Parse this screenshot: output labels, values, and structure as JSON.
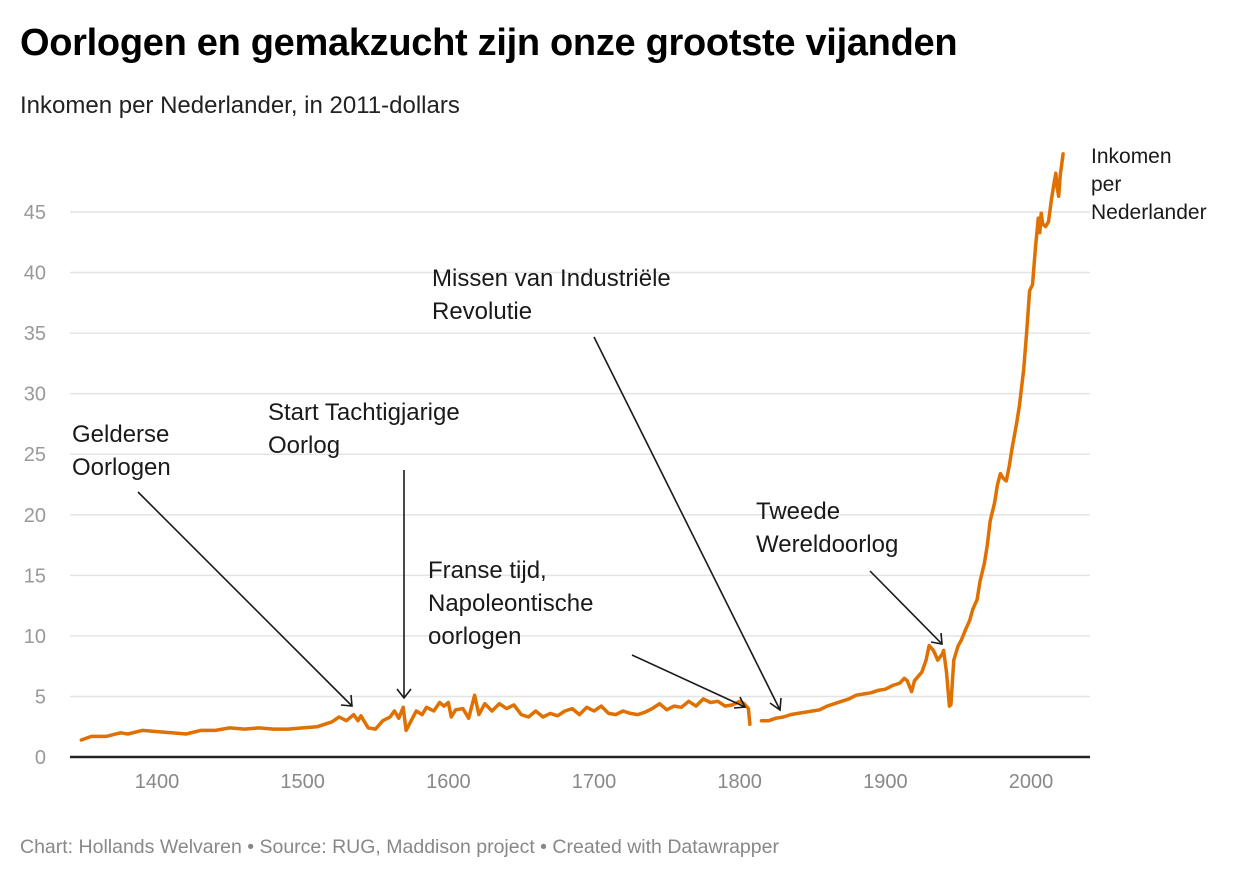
{
  "title": "Oorlogen en gemakzucht zijn onze grootste vijanden",
  "subtitle": "Inkomen per Nederlander, in 2011-dollars",
  "footer": "Chart: Hollands Welvaren • Source: RUG, Maddison project • Created with Datawrapper",
  "colors": {
    "line": "#e07000",
    "grid": "#e4e4e4",
    "axis": "#222222"
  },
  "chart_data": {
    "type": "line",
    "title": "Oorlogen en gemakzucht zijn onze grootste vijanden",
    "subtitle": "Inkomen per Nederlander, in 2011-dollars",
    "xlabel": "",
    "ylabel": "",
    "xlim": [
      1340,
      2030
    ],
    "ylim": [
      0,
      50
    ],
    "grid": true,
    "yticks": [
      0,
      5,
      10,
      15,
      20,
      25,
      30,
      35,
      40,
      45
    ],
    "xticks": [
      1400,
      1500,
      1600,
      1700,
      1800,
      1900,
      2000
    ],
    "series": [
      {
        "name": "Inkomen per Nederlander",
        "label_lines": [
          "Inkomen",
          "per",
          "Nederlander"
        ],
        "segments": [
          [
            [
              1348,
              1.4
            ],
            [
              1355,
              1.7
            ],
            [
              1365,
              1.7
            ],
            [
              1375,
              2.0
            ],
            [
              1380,
              1.9
            ],
            [
              1390,
              2.2
            ],
            [
              1400,
              2.1
            ],
            [
              1410,
              2.0
            ],
            [
              1420,
              1.9
            ],
            [
              1430,
              2.2
            ],
            [
              1440,
              2.2
            ],
            [
              1450,
              2.4
            ],
            [
              1460,
              2.3
            ],
            [
              1470,
              2.4
            ],
            [
              1480,
              2.3
            ],
            [
              1490,
              2.3
            ],
            [
              1500,
              2.4
            ],
            [
              1510,
              2.5
            ],
            [
              1515,
              2.7
            ],
            [
              1520,
              2.9
            ],
            [
              1525,
              3.3
            ],
            [
              1530,
              3.0
            ],
            [
              1535,
              3.5
            ],
            [
              1538,
              3.0
            ],
            [
              1540,
              3.4
            ],
            [
              1545,
              2.4
            ],
            [
              1550,
              2.3
            ],
            [
              1555,
              3.0
            ],
            [
              1560,
              3.3
            ],
            [
              1563,
              3.8
            ],
            [
              1566,
              3.2
            ],
            [
              1569,
              4.1
            ],
            [
              1571,
              2.2
            ],
            [
              1574,
              2.9
            ],
            [
              1578,
              3.8
            ],
            [
              1582,
              3.5
            ],
            [
              1585,
              4.1
            ],
            [
              1590,
              3.8
            ],
            [
              1594,
              4.5
            ],
            [
              1597,
              4.2
            ],
            [
              1600,
              4.5
            ],
            [
              1602,
              3.3
            ],
            [
              1605,
              3.9
            ],
            [
              1610,
              4.0
            ],
            [
              1614,
              3.2
            ],
            [
              1618,
              5.1
            ],
            [
              1621,
              3.5
            ],
            [
              1625,
              4.4
            ],
            [
              1630,
              3.8
            ],
            [
              1635,
              4.4
            ],
            [
              1640,
              4.0
            ],
            [
              1645,
              4.3
            ],
            [
              1650,
              3.5
            ],
            [
              1655,
              3.3
            ],
            [
              1660,
              3.8
            ],
            [
              1665,
              3.3
            ],
            [
              1670,
              3.6
            ],
            [
              1675,
              3.4
            ],
            [
              1680,
              3.8
            ],
            [
              1685,
              4.0
            ],
            [
              1690,
              3.5
            ],
            [
              1695,
              4.1
            ],
            [
              1700,
              3.8
            ],
            [
              1705,
              4.2
            ],
            [
              1710,
              3.6
            ],
            [
              1715,
              3.5
            ],
            [
              1720,
              3.8
            ],
            [
              1725,
              3.6
            ],
            [
              1730,
              3.5
            ],
            [
              1735,
              3.7
            ],
            [
              1740,
              4.0
            ],
            [
              1745,
              4.4
            ],
            [
              1750,
              3.9
            ],
            [
              1755,
              4.2
            ],
            [
              1760,
              4.1
            ],
            [
              1765,
              4.6
            ],
            [
              1770,
              4.2
            ],
            [
              1775,
              4.8
            ],
            [
              1780,
              4.5
            ],
            [
              1785,
              4.6
            ],
            [
              1790,
              4.2
            ],
            [
              1795,
              4.3
            ],
            [
              1800,
              4.6
            ],
            [
              1803,
              4.4
            ],
            [
              1806,
              4.0
            ],
            [
              1807,
              2.7
            ]
          ],
          [
            [
              1815,
              3.0
            ],
            [
              1820,
              3.0
            ],
            [
              1825,
              3.2
            ],
            [
              1830,
              3.3
            ],
            [
              1835,
              3.5
            ],
            [
              1840,
              3.6
            ],
            [
              1845,
              3.7
            ],
            [
              1850,
              3.8
            ],
            [
              1855,
              3.9
            ],
            [
              1860,
              4.2
            ],
            [
              1865,
              4.4
            ],
            [
              1870,
              4.6
            ],
            [
              1875,
              4.8
            ],
            [
              1880,
              5.1
            ],
            [
              1885,
              5.2
            ],
            [
              1890,
              5.3
            ],
            [
              1895,
              5.5
            ],
            [
              1900,
              5.6
            ],
            [
              1905,
              5.9
            ],
            [
              1910,
              6.1
            ],
            [
              1913,
              6.5
            ],
            [
              1915,
              6.3
            ],
            [
              1918,
              5.4
            ],
            [
              1920,
              6.3
            ],
            [
              1925,
              7.0
            ],
            [
              1928,
              8.0
            ],
            [
              1930,
              9.2
            ],
            [
              1933,
              8.8
            ],
            [
              1936,
              8.0
            ],
            [
              1939,
              8.5
            ],
            [
              1940,
              8.8
            ],
            [
              1942,
              7.0
            ],
            [
              1944,
              4.2
            ],
            [
              1945,
              4.3
            ],
            [
              1947,
              8.0
            ],
            [
              1950,
              9.2
            ],
            [
              1952,
              9.6
            ],
            [
              1955,
              10.5
            ],
            [
              1958,
              11.3
            ],
            [
              1960,
              12.2
            ],
            [
              1963,
              13.0
            ],
            [
              1965,
              14.5
            ],
            [
              1968,
              16.0
            ],
            [
              1970,
              17.5
            ],
            [
              1972,
              19.5
            ],
            [
              1975,
              21.0
            ],
            [
              1977,
              22.5
            ],
            [
              1979,
              23.4
            ],
            [
              1981,
              23.0
            ],
            [
              1983,
              22.8
            ],
            [
              1985,
              24.0
            ],
            [
              1987,
              25.5
            ],
            [
              1990,
              27.5
            ],
            [
              1992,
              29.0
            ],
            [
              1995,
              32.0
            ],
            [
              1997,
              35.0
            ],
            [
              1999,
              38.5
            ],
            [
              2001,
              39.0
            ],
            [
              2003,
              42.0
            ],
            [
              2005,
              44.5
            ],
            [
              2006,
              43.3
            ],
            [
              2007,
              44.9
            ],
            [
              2008,
              44.0
            ],
            [
              2010,
              43.8
            ],
            [
              2012,
              44.2
            ],
            [
              2014,
              46.0
            ],
            [
              2016,
              47.5
            ],
            [
              2017,
              48.2
            ],
            [
              2018,
              47.0
            ],
            [
              2019,
              46.3
            ],
            [
              2020,
              48.0
            ],
            [
              2022,
              49.8
            ]
          ]
        ]
      }
    ],
    "annotations": [
      {
        "lines": [
          "Gelderse",
          "Oorlogen"
        ]
      },
      {
        "lines": [
          "Start Tachtigjarige",
          "Oorlog"
        ]
      },
      {
        "lines": [
          "Franse tijd,",
          "Napoleontische",
          "oorlogen"
        ]
      },
      {
        "lines": [
          "Missen van Industriële",
          "Revolutie"
        ]
      },
      {
        "lines": [
          "Tweede",
          "Wereldoorlog"
        ]
      }
    ]
  }
}
